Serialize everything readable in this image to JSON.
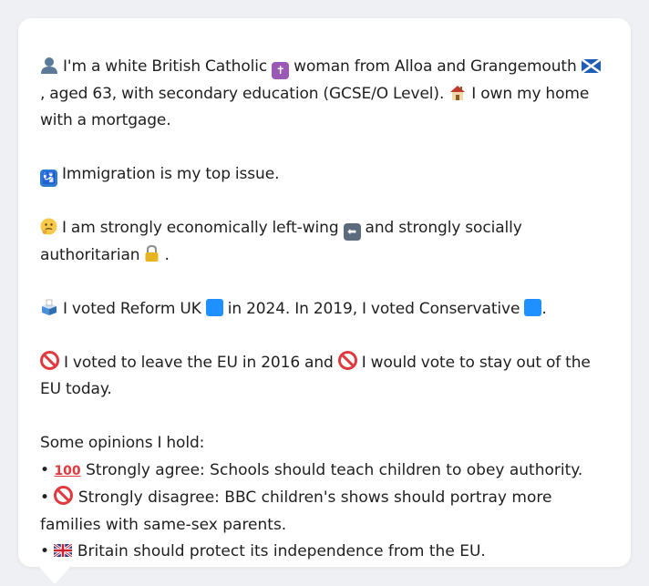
{
  "profile": {
    "intro_a": " I'm a white British Catholic ",
    "intro_b": " woman from Alloa and Grangemouth ",
    "intro_c": ", aged 63, with secondary education (GCSE/O Level). ",
    "intro_d": " I own my home with a mortgage.",
    "top_issue": " Immigration is my top issue.",
    "econ_a": " I am strongly economically left-wing ",
    "econ_b": " and strongly socially authoritarian ",
    "econ_c": ".",
    "vote_a": " I voted Reform UK ",
    "vote_b": " in 2024. In 2019, I voted Conservative ",
    "vote_c": ".",
    "eu_a": " I voted to leave the EU in 2016 and ",
    "eu_b": " I would vote to stay out of the EU today.",
    "opinions_heading": "Some opinions I hold:",
    "opinions": [
      {
        "bullet": "•",
        "text": " Strongly agree: Schools should teach children to obey authority."
      },
      {
        "bullet": "•",
        "text": " Strongly disagree: BBC children's shows should portray more families with same-sex parents."
      },
      {
        "bullet": "•",
        "text": " Britain should protect its independence from the EU."
      }
    ]
  },
  "icons": {
    "person": "person-icon",
    "cross": "latin-cross-icon",
    "flag_scotland": "scotland-flag-icon",
    "house": "house-icon",
    "passport": "passport-control-icon",
    "thinking": "thinking-face-icon",
    "left_arrow": "left-arrow-icon",
    "lock": "lock-icon",
    "ballot": "ballot-box-icon",
    "blue_square": "blue-square-icon",
    "no_entry": "prohibited-icon",
    "hundred": "hundred-points-icon",
    "flag_uk": "uk-flag-icon"
  },
  "colors": {
    "background": "#eef0f3",
    "card": "#ffffff",
    "text": "#1f1f1f",
    "blue_square": "#1e90ff",
    "cross_box": "#9b59b6",
    "passport_box": "#2b7bd6",
    "arrow_box": "#5b6b7d",
    "no_entry": "#e0393e"
  }
}
